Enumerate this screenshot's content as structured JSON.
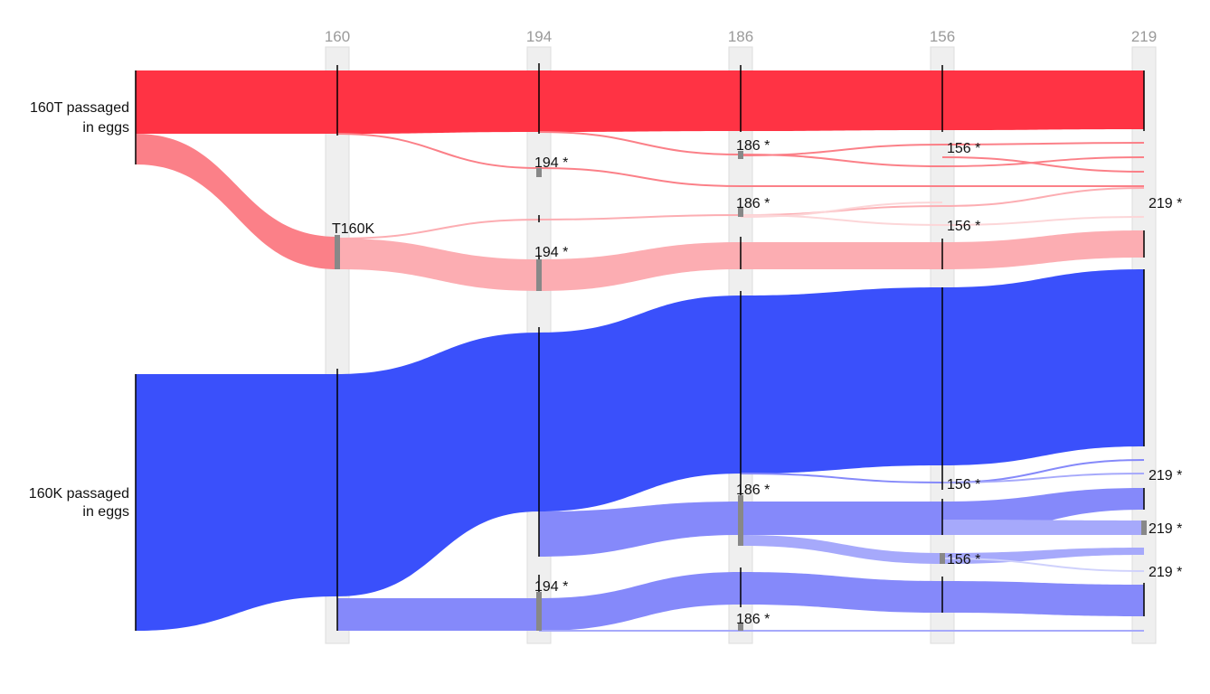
{
  "columns": [
    "160",
    "194",
    "186",
    "156",
    "219"
  ],
  "groups": [
    {
      "line1": "160T passaged",
      "line2": "in eggs"
    },
    {
      "line1": "160K passaged",
      "line2": "in eggs"
    }
  ],
  "labels": {
    "t160k": "T160K",
    "m194": "194 *",
    "m186": "186 *",
    "m156": "156 *",
    "m219": "219 *"
  },
  "colors": {
    "red": "#ff3344",
    "red_mid": "#fb8088",
    "red_light": "#fcadb2",
    "red_faint": "#fcd6d8",
    "blue": "#3a50fb",
    "blue_mid": "#8589fa",
    "blue_light": "#a6a9fb",
    "blue_faint": "#cfd1fc",
    "column_band": "#efefef",
    "mutation_marker": "#888888"
  }
}
